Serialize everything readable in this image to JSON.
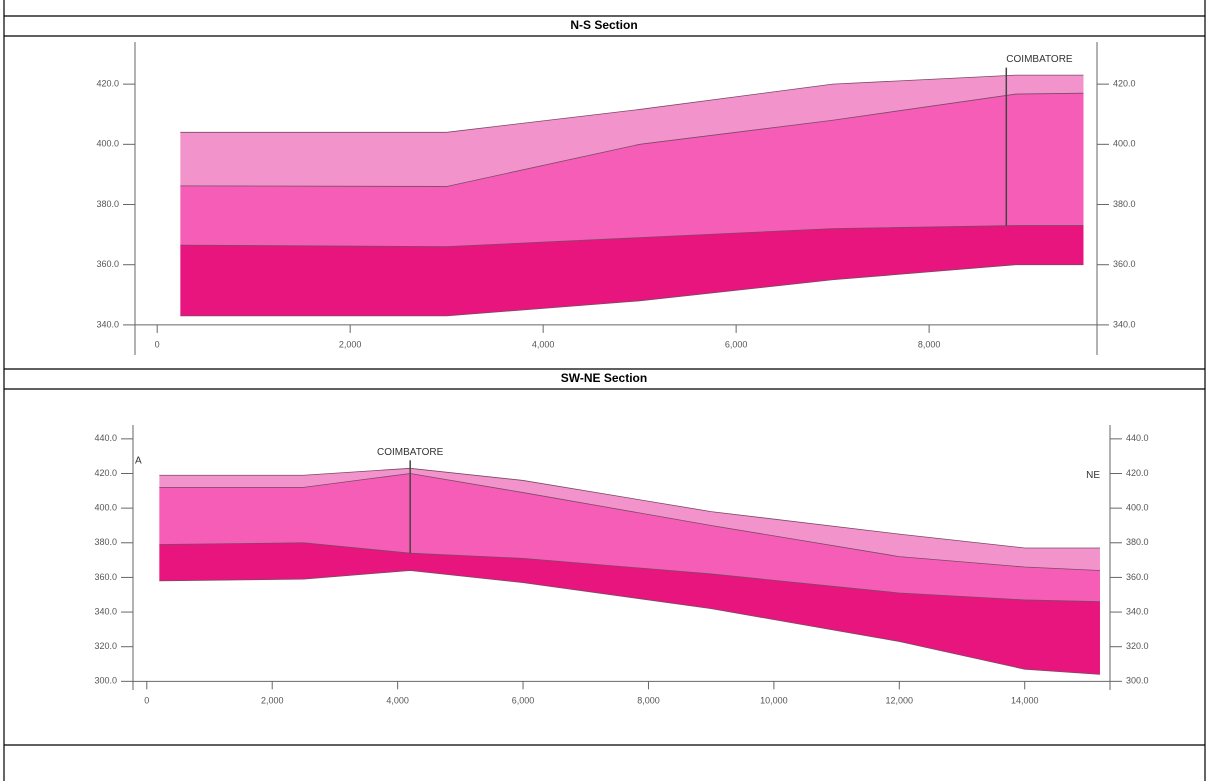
{
  "chart_data": [
    {
      "type": "area",
      "title": "N-S Section",
      "x": [
        240,
        3000,
        5000,
        7000,
        8900,
        9600
      ],
      "series": [
        {
          "color": "#7a4a66",
          "values": [
            404,
            404,
            411.6,
            420,
            423,
            423
          ]
        },
        {
          "color": "#7a4a66",
          "values": [
            386.2,
            386,
            400,
            408,
            416.7,
            417
          ]
        },
        {
          "color": "#7a4a66",
          "values": [
            366.5,
            366,
            369,
            372,
            373,
            373
          ]
        },
        {
          "color": "#7a4a66",
          "values": [
            343,
            343,
            348,
            355,
            360,
            360
          ]
        }
      ],
      "layer_colors": [
        "#f294cb",
        "#f65db6",
        "#e8157f"
      ],
      "xlim": [
        -230,
        9740
      ],
      "ylim": [
        330,
        434
      ],
      "xticks": [
        0,
        {
          "value": 2000,
          "label": "2,000"
        },
        {
          "value": 4000,
          "label": "4,000"
        },
        {
          "value": 6000,
          "label": "6,000"
        },
        {
          "value": 8000,
          "label": "8,000"
        }
      ],
      "yticks": [
        {
          "value": 340,
          "label": "340.0"
        },
        {
          "value": 360,
          "label": "360.0"
        },
        {
          "value": 380,
          "label": "380.0"
        },
        {
          "value": 400,
          "label": "400.0"
        },
        {
          "value": 420,
          "label": "420.0"
        }
      ],
      "well": {
        "label": "COIMBATORE",
        "x": 8800
      }
    },
    {
      "type": "area",
      "title": "SW-NE Section",
      "x": [
        200,
        2500,
        4200,
        6000,
        9000,
        12000,
        14000,
        15200
      ],
      "series": [
        {
          "color": "#7a4a66",
          "values": [
            419,
            419,
            423,
            416,
            398,
            385,
            377,
            377
          ]
        },
        {
          "color": "#7a4a66",
          "values": [
            412,
            412,
            420,
            409,
            390,
            372,
            366,
            364
          ]
        },
        {
          "color": "#7a4a66",
          "values": [
            379,
            380,
            374,
            371,
            362,
            351,
            347,
            346
          ]
        },
        {
          "color": "#7a4a66",
          "values": [
            358,
            359,
            364,
            357,
            342,
            323,
            307,
            304
          ]
        }
      ],
      "layer_colors": [
        "#f294cb",
        "#f65db6",
        "#e8157f"
      ],
      "xlim": [
        -220,
        15360
      ],
      "ylim": [
        295,
        448
      ],
      "xticks": [
        0,
        {
          "value": 2000,
          "label": "2,000"
        },
        {
          "value": 4000,
          "label": "4,000"
        },
        {
          "value": 6000,
          "label": "6,000"
        },
        {
          "value": 8000,
          "label": "8,000"
        },
        {
          "value": 10000,
          "label": "10,000"
        },
        {
          "value": 12000,
          "label": "12,000"
        },
        {
          "value": 14000,
          "label": "14,000"
        }
      ],
      "yticks": [
        {
          "value": 300,
          "label": "300.0"
        },
        {
          "value": 320,
          "label": "320.0"
        },
        {
          "value": 340,
          "label": "340.0"
        },
        {
          "value": 360,
          "label": "360.0"
        },
        {
          "value": 380,
          "label": "380.0"
        },
        {
          "value": 400,
          "label": "400.0"
        },
        {
          "value": 420,
          "label": "420.0"
        },
        {
          "value": 440,
          "label": "440.0"
        }
      ],
      "well": {
        "label": "COIMBATORE",
        "x": 4200
      },
      "end_labels": [
        "A",
        "NE"
      ]
    }
  ]
}
